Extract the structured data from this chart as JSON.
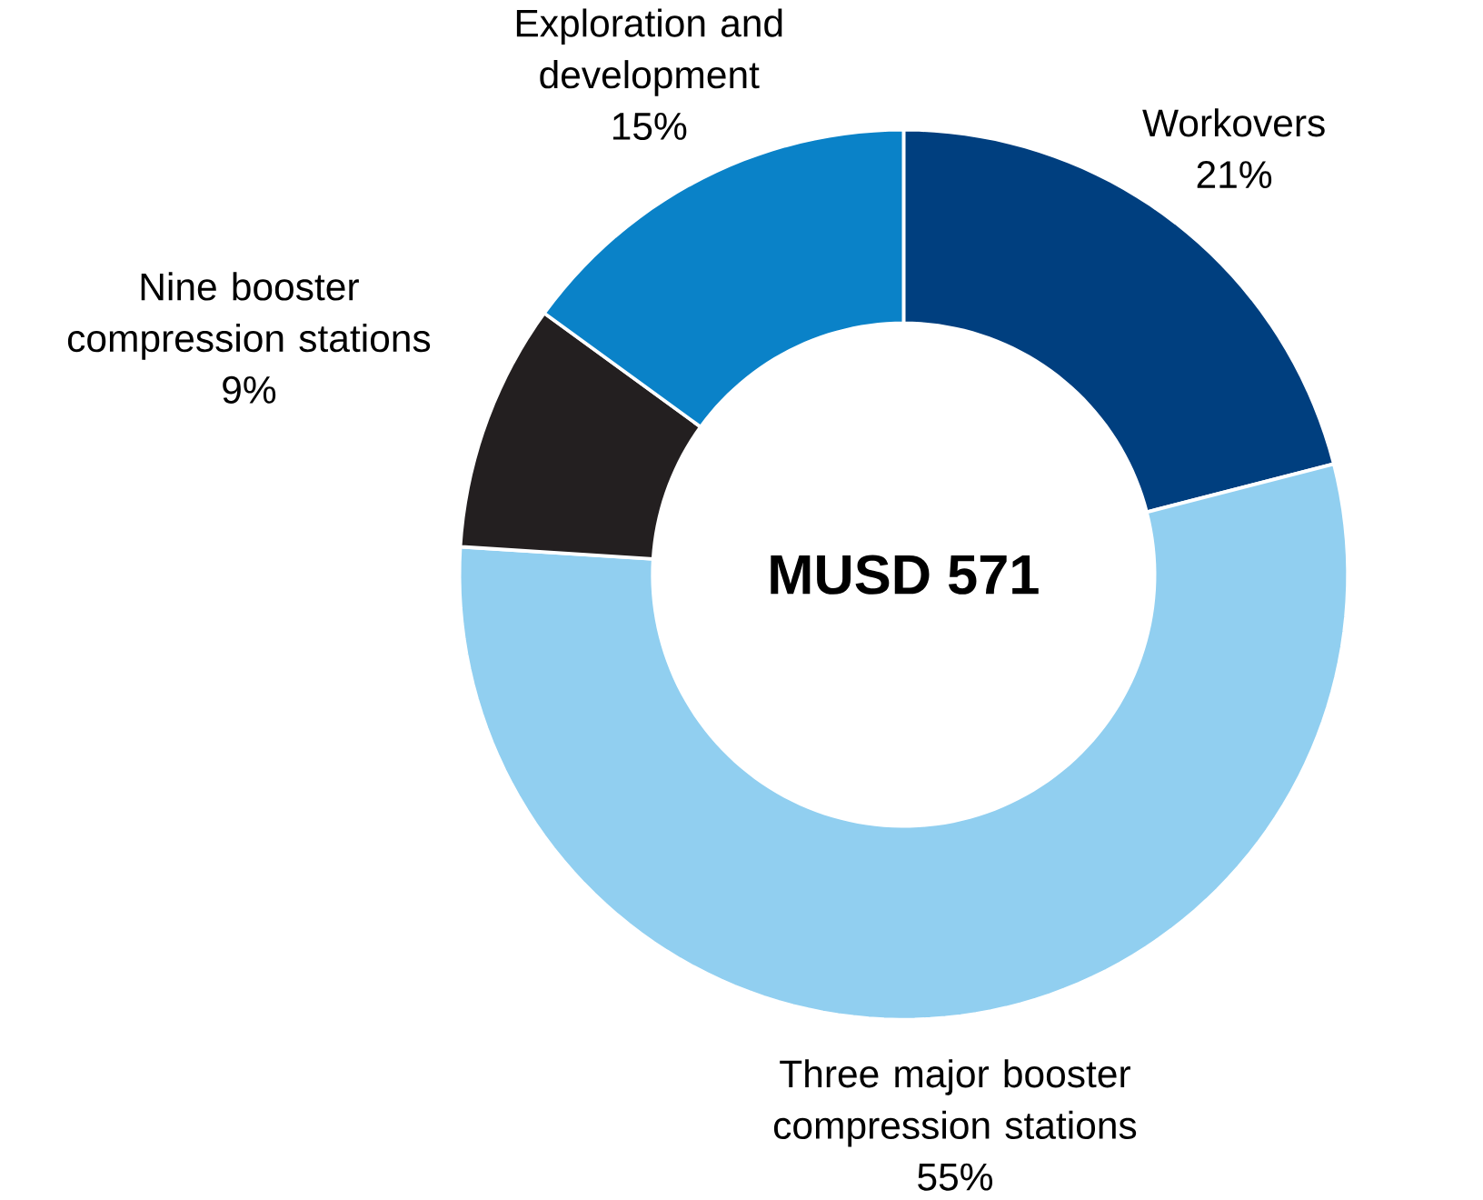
{
  "chart_data": {
    "type": "donut",
    "categories": [
      "Workovers",
      "Three major booster compression stations",
      "Nine booster compression stations",
      "Exploration and development"
    ],
    "values": [
      21,
      55,
      9,
      15
    ],
    "colors": [
      "#003f7f",
      "#91cff0",
      "#231f20",
      "#0a82c8"
    ],
    "value_labels": [
      "21%",
      "55%",
      "9%",
      "15%"
    ],
    "annotations": [
      "MUSD 571"
    ]
  }
}
